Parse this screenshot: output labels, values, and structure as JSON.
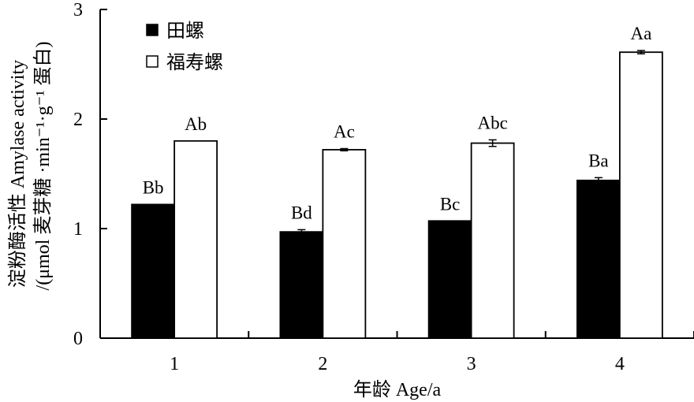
{
  "chart_data": {
    "type": "bar",
    "categories": [
      "1",
      "2",
      "3",
      "4"
    ],
    "series": [
      {
        "name": "田螺",
        "fill": "#000000",
        "values": [
          1.22,
          0.97,
          1.07,
          1.44
        ],
        "errors": [
          0.0,
          0.02,
          0.0,
          0.025
        ],
        "letters": [
          "Bb",
          "Bd",
          "Bc",
          "Ba"
        ]
      },
      {
        "name": "福寿螺",
        "fill": "#ffffff",
        "values": [
          1.8,
          1.72,
          1.78,
          2.61
        ],
        "errors": [
          0.0,
          0.01,
          0.03,
          0.015
        ],
        "letters": [
          "Ab",
          "Ac",
          "Abc",
          "Aa"
        ]
      }
    ],
    "ylim": [
      0,
      3
    ],
    "yticks": [
      "0",
      "1",
      "2",
      "3"
    ],
    "xlabel": "年龄 Age/a",
    "ylabel_line1": "淀粉酶活性 Amylase activity",
    "ylabel_line2": "/(μmol 麦芽糖 ·min⁻¹·g⁻¹ 蛋白)",
    "legend_position": "top-left",
    "grid": false
  }
}
